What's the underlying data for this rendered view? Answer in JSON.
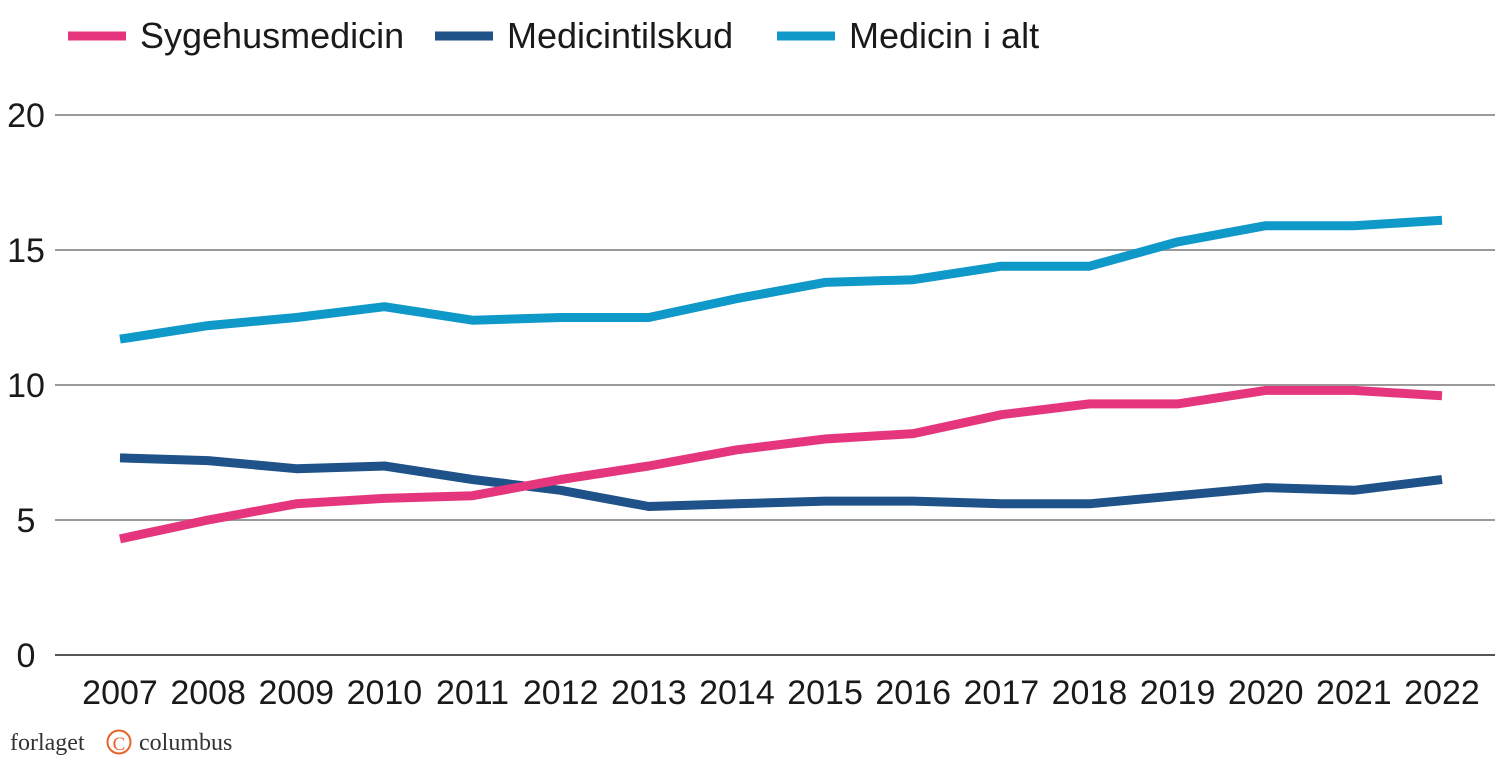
{
  "chart_data": {
    "type": "line",
    "title": "",
    "xlabel": "",
    "ylabel": "",
    "x": [
      "2007",
      "2008",
      "2009",
      "2010",
      "2011",
      "2012",
      "2013",
      "2014",
      "2015",
      "2016",
      "2017",
      "2018",
      "2019",
      "2020",
      "2021",
      "2022"
    ],
    "ylim": [
      0,
      20
    ],
    "yticks": [
      "0",
      "5",
      "10",
      "15",
      "20"
    ],
    "grid": true,
    "legend_position": "top-left",
    "series": [
      {
        "name": "Sygehusmedicin",
        "color": "#e5357c",
        "values": [
          4.3,
          5.0,
          5.6,
          5.8,
          5.9,
          6.5,
          7.0,
          7.6,
          8.0,
          8.2,
          8.9,
          9.3,
          9.3,
          9.8,
          9.8,
          9.6
        ]
      },
      {
        "name": "Medicintilskud",
        "color": "#1e5288",
        "values": [
          7.3,
          7.2,
          6.9,
          7.0,
          6.5,
          6.1,
          5.5,
          5.6,
          5.7,
          5.7,
          5.6,
          5.6,
          5.9,
          6.2,
          6.1,
          6.5
        ]
      },
      {
        "name": "Medicin i alt",
        "color": "#0e99c8",
        "values": [
          11.7,
          12.2,
          12.5,
          12.9,
          12.4,
          12.5,
          12.5,
          13.2,
          13.8,
          13.9,
          14.4,
          14.4,
          15.3,
          15.9,
          15.9,
          16.1
        ]
      }
    ]
  },
  "footer": {
    "brand_left": "forlaget",
    "brand_mark": "C",
    "brand_right": "columbus"
  }
}
